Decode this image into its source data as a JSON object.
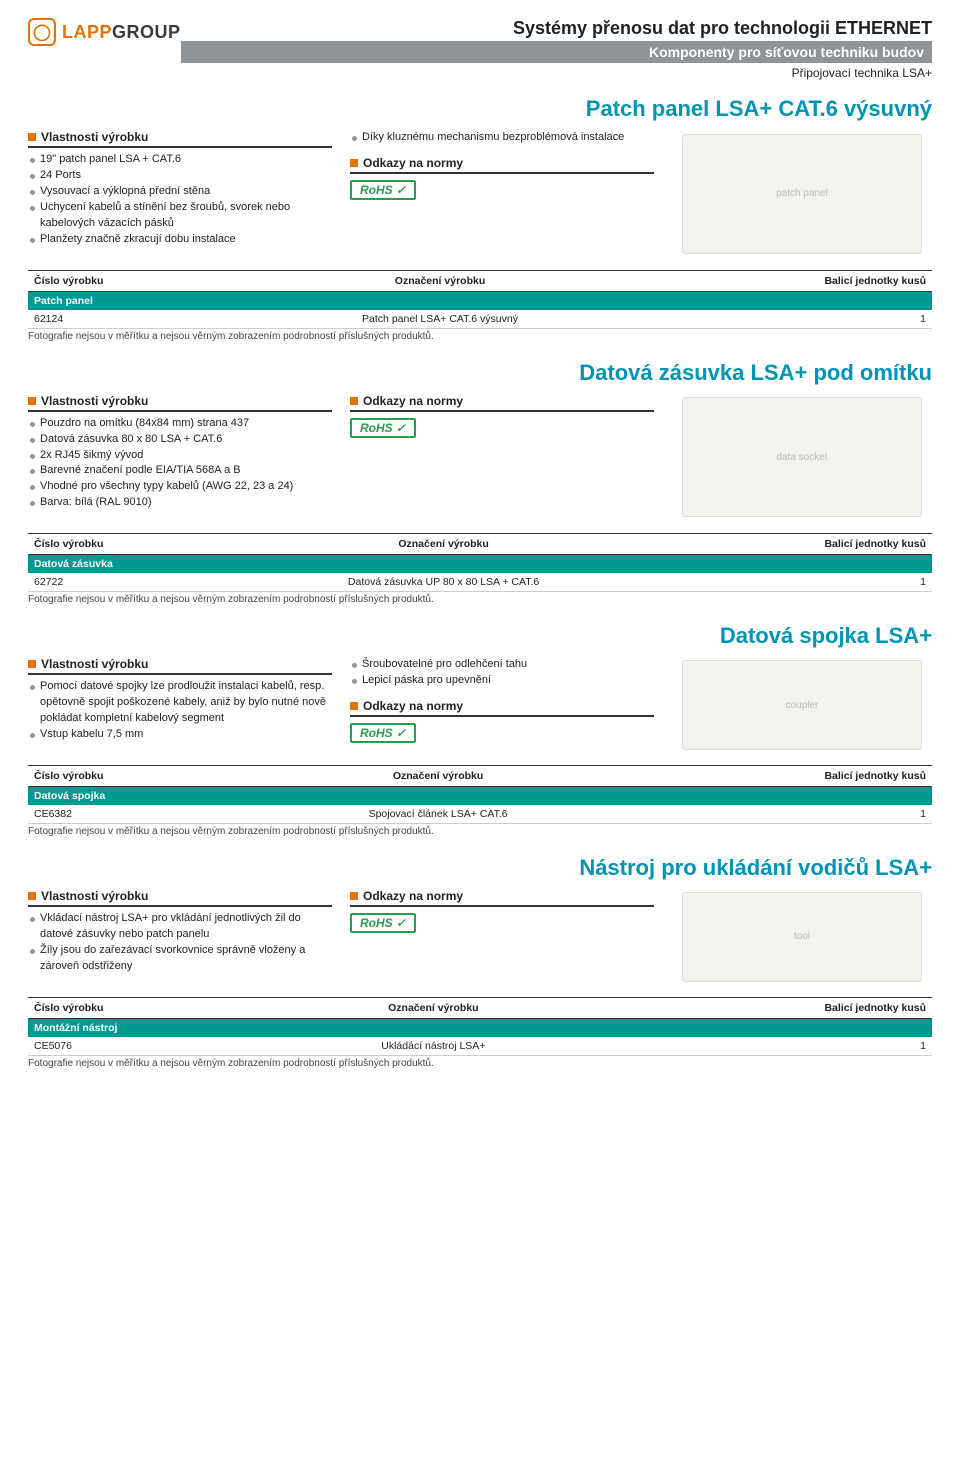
{
  "header": {
    "logo": {
      "brand1": "LAPP",
      "brand2": "GROUP"
    },
    "title_main": "Systémy přenosu dat pro technologii ETHERNET",
    "title_bar": "Komponenty pro síťovou techniku budov",
    "title_sub2": "Připojovací technika LSA+"
  },
  "labels": {
    "features": "Vlastnosti výrobku",
    "norms": "Odkazy na normy",
    "rohs": "RoHS",
    "col_num": "Číslo výrobku",
    "col_desc": "Označení výrobku",
    "col_qty": "Balicí jednotky kusů",
    "footnote": "Fotografie nejsou v měřítku a nejsou věrným zobrazením podrobností příslušných produktů."
  },
  "p1": {
    "title": "Patch panel LSA+ CAT.6 výsuvný",
    "img_alt": "patch panel",
    "features_left": [
      "19\" patch panel LSA + CAT.6",
      "24 Ports",
      "Vysouvací a výklopná přední stěna",
      "Uchycení kabelů a stínění bez šroubů, svorek nebo kabelových vázacích pásků",
      "Planžety značně zkracují dobu instalace"
    ],
    "features_right": [
      "Díky kluznému mechanismu bezproblémová instalace"
    ],
    "table": {
      "category": "Patch panel",
      "num": "62124",
      "desc": "Patch panel LSA+ CAT.6 výsuvný",
      "qty": "1"
    }
  },
  "p2": {
    "title": "Datová zásuvka LSA+ pod omítku",
    "img_alt": "data socket",
    "features_left": [
      "Pouzdro na omítku (84x84 mm) strana 437",
      "Datová zásuvka 80 x 80 LSA + CAT.6",
      "2x RJ45 šikmý vývod",
      "Barevné značení podle EIA/TIA 568A a B",
      "Vhodné pro všechny typy kabelů (AWG 22, 23 a 24)",
      "Barva: bílá (RAL 9010)"
    ],
    "table": {
      "category": "Datová zásuvka",
      "num": "62722",
      "desc": "Datová zásuvka UP 80 x 80 LSA + CAT.6",
      "qty": "1"
    }
  },
  "p3": {
    "title": "Datová spojka LSA+",
    "img_alt": "coupler",
    "features_left": [
      "Pomocí datové spojky lze prodloužit instalaci kabelů, resp. opětovně spojit poškozené kabely, aniž by bylo nutné nově pokládat kompletní kabelový segment",
      "Vstup kabelu 7,5 mm"
    ],
    "features_right": [
      "Šroubovatelné pro odlehčení tahu",
      "Lepicí páska pro upevnění"
    ],
    "table": {
      "category": "Datová spojka",
      "num": "CE6382",
      "desc": "Spojovací článek LSA+ CAT.6",
      "qty": "1"
    }
  },
  "p4": {
    "title": "Nástroj pro ukládání vodičů LSA+",
    "img_alt": "tool",
    "features_left": [
      "Vkládací nástroj LSA+ pro vkládání jednotlivých žil do datové zásuvky nebo patch panelu",
      "Žíly jsou do zařezávací svorkovnice správně vloženy a zároveň odstřiženy"
    ],
    "table": {
      "category": "Montážní nástroj",
      "num": "CE5076",
      "desc": "Ukládácí nástroj LSA+",
      "qty": "1"
    }
  }
}
